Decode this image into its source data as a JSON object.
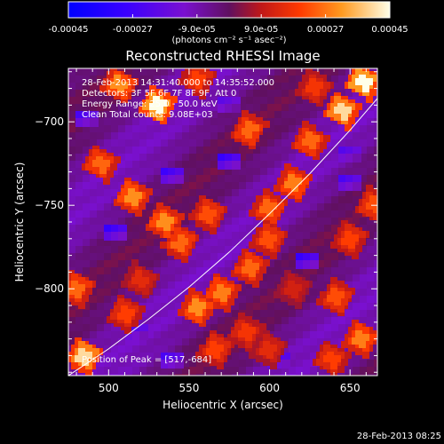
{
  "title": "Reconstructed RHESSI Image",
  "colorbar": {
    "ticks": [
      "-0.00045",
      "-0.00027",
      "-9.0e-05",
      "9.0e-05",
      "0.00027",
      "0.00045"
    ],
    "tick_values": [
      -0.00045,
      -0.00027,
      -9e-05,
      9e-05,
      0.00027,
      0.00045
    ],
    "unit_label": "(photons cm⁻² s⁻¹ asec⁻²)",
    "colors": [
      "#0000ff",
      "#7a00ff",
      "#7a1fb0",
      "#c02020",
      "#ff4000",
      "#ffa030",
      "#ffffe0"
    ]
  },
  "annotations": {
    "time_range": "28-Feb-2013 14:31:40.000 to 14:35:52.000",
    "detectors": "Detectors: 3F 5F 6F 7F 8F 9F, Att 0",
    "energy": "Energy Range: 25.0 - 50.0 keV",
    "clean": "Clean  Total counts: 9.08E+03",
    "peak": "Position of Peak = [517,-684]"
  },
  "footer_timestamp": "28-Feb-2013 08:25",
  "chart_data": {
    "type": "heatmap",
    "title": "Reconstructed RHESSI Image",
    "xlabel": "Heliocentric X (arcsec)",
    "ylabel": "Heliocentric Y (arcsec)",
    "xlim": [
      475,
      667
    ],
    "ylim": [
      -852,
      -668
    ],
    "x_ticks": [
      500,
      550,
      600,
      650
    ],
    "y_ticks": [
      -700,
      -750,
      -800
    ],
    "zlim": [
      -0.00045,
      0.00045
    ],
    "peak_position": [
      517,
      -684
    ],
    "limb_curve": {
      "x": [
        475,
        500,
        525,
        550,
        575,
        600,
        625,
        650,
        667
      ],
      "y": [
        -852,
        -836,
        -818,
        -799,
        -778,
        -755,
        -731,
        -705,
        -686
      ]
    },
    "blobs": [
      {
        "x": 530,
        "y": -690,
        "value": 0.00045
      },
      {
        "x": 645,
        "y": -693,
        "value": 0.0004
      },
      {
        "x": 658,
        "y": -676,
        "value": 0.00045
      },
      {
        "x": 507,
        "y": -678,
        "value": 0.0003
      },
      {
        "x": 555,
        "y": -674,
        "value": 0.0002
      },
      {
        "x": 587,
        "y": -705,
        "value": 0.00025
      },
      {
        "x": 625,
        "y": -712,
        "value": 0.00025
      },
      {
        "x": 495,
        "y": -725,
        "value": 0.00025
      },
      {
        "x": 515,
        "y": -745,
        "value": 0.0003
      },
      {
        "x": 535,
        "y": -760,
        "value": 0.0003
      },
      {
        "x": 545,
        "y": -772,
        "value": 0.00025
      },
      {
        "x": 562,
        "y": -755,
        "value": 0.00022
      },
      {
        "x": 600,
        "y": -752,
        "value": 0.00025
      },
      {
        "x": 615,
        "y": -737,
        "value": 0.00028
      },
      {
        "x": 600,
        "y": -770,
        "value": 0.00022
      },
      {
        "x": 588,
        "y": -787,
        "value": 0.00025
      },
      {
        "x": 570,
        "y": -802,
        "value": 0.00028
      },
      {
        "x": 555,
        "y": -812,
        "value": 0.0003
      },
      {
        "x": 567,
        "y": -836,
        "value": 0.0002
      },
      {
        "x": 585,
        "y": -826,
        "value": 0.00018
      },
      {
        "x": 650,
        "y": -770,
        "value": 0.0002
      },
      {
        "x": 665,
        "y": -750,
        "value": 0.00022
      },
      {
        "x": 642,
        "y": -805,
        "value": 0.00022
      },
      {
        "x": 657,
        "y": -830,
        "value": 0.00028
      },
      {
        "x": 638,
        "y": -842,
        "value": 0.0002
      },
      {
        "x": 600,
        "y": -836,
        "value": 0.00015
      },
      {
        "x": 480,
        "y": -800,
        "value": 0.00025
      },
      {
        "x": 485,
        "y": -840,
        "value": 0.0004
      },
      {
        "x": 510,
        "y": -815,
        "value": 0.0002
      },
      {
        "x": 520,
        "y": -795,
        "value": 0.00015
      },
      {
        "x": 628,
        "y": -680,
        "value": 0.00018
      },
      {
        "x": 615,
        "y": -800,
        "value": 0.00012
      }
    ],
    "cold_spots": [
      {
        "x": 575,
        "y": -728,
        "value": -0.0003
      },
      {
        "x": 540,
        "y": -735,
        "value": -0.00028
      },
      {
        "x": 505,
        "y": -770,
        "value": -0.0003
      },
      {
        "x": 520,
        "y": -830,
        "value": -0.00025
      },
      {
        "x": 625,
        "y": -785,
        "value": -0.0003
      },
      {
        "x": 650,
        "y": -740,
        "value": -0.00025
      },
      {
        "x": 610,
        "y": -845,
        "value": -0.00028
      },
      {
        "x": 490,
        "y": -700,
        "value": -0.00025
      },
      {
        "x": 650,
        "y": -720,
        "value": -0.00022
      },
      {
        "x": 575,
        "y": -690,
        "value": -0.0002
      },
      {
        "x": 540,
        "y": -845,
        "value": -0.00025
      }
    ]
  }
}
